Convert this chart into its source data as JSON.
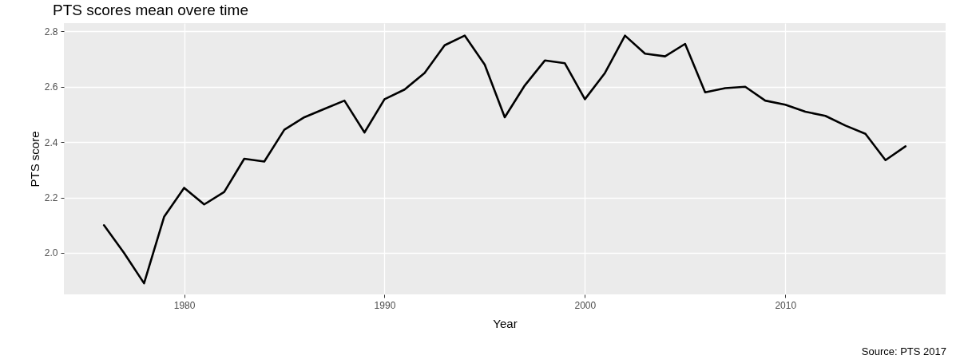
{
  "chart_data": {
    "type": "line",
    "title": "PTS scores mean overe time",
    "xlabel": "Year",
    "ylabel": "PTS score",
    "x": [
      1976,
      1977,
      1978,
      1979,
      1980,
      1981,
      1982,
      1983,
      1984,
      1985,
      1986,
      1987,
      1988,
      1989,
      1990,
      1991,
      1992,
      1993,
      1994,
      1995,
      1996,
      1997,
      1998,
      1999,
      2000,
      2001,
      2002,
      2003,
      2004,
      2005,
      2006,
      2007,
      2008,
      2009,
      2010,
      2011,
      2012,
      2013,
      2014,
      2015,
      2016
    ],
    "values": [
      2.1,
      2.0,
      1.89,
      2.13,
      2.235,
      2.175,
      2.22,
      2.34,
      2.33,
      2.445,
      2.49,
      2.52,
      2.55,
      2.435,
      2.555,
      2.59,
      2.65,
      2.75,
      2.785,
      2.68,
      2.49,
      2.605,
      2.695,
      2.685,
      2.555,
      2.65,
      2.785,
      2.72,
      2.71,
      2.755,
      2.58,
      2.595,
      2.6,
      2.55,
      2.535,
      2.51,
      2.495,
      2.46,
      2.43,
      2.335,
      2.385
    ],
    "color": "#000000",
    "line_style": "solid",
    "marker": "none",
    "xlim": [
      1974,
      2018
    ],
    "xticks": [
      1980,
      1990,
      2000,
      2010
    ],
    "ylim": [
      1.85,
      2.83
    ],
    "yticks": [
      {
        "value": 2.0,
        "label": "2.0"
      },
      2.2,
      2.4,
      2.6,
      2.8
    ],
    "grid": true,
    "annotations": [
      "Source: PTS 2017"
    ]
  }
}
